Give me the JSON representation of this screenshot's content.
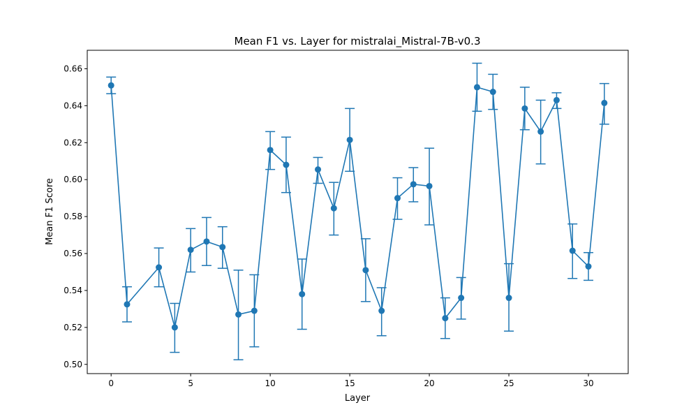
{
  "chart_data": {
    "type": "line",
    "title": "Mean F1 vs. Layer for mistralai_Mistral-7B-v0.3",
    "xlabel": "Layer",
    "ylabel": "Mean F1 Score",
    "xlim": [
      -1.5,
      32.5
    ],
    "ylim": [
      0.495,
      0.67
    ],
    "xticks": [
      0,
      5,
      10,
      15,
      20,
      25,
      30
    ],
    "yticks": [
      0.5,
      0.52,
      0.54,
      0.56,
      0.58,
      0.6,
      0.62,
      0.64,
      0.66
    ],
    "xtick_labels": [
      "0",
      "5",
      "10",
      "15",
      "20",
      "25",
      "30"
    ],
    "ytick_labels": [
      "0.50",
      "0.52",
      "0.54",
      "0.56",
      "0.58",
      "0.60",
      "0.62",
      "0.64",
      "0.66"
    ],
    "color": "#1f77b4",
    "series": [
      {
        "name": "Mean F1",
        "x": [
          0,
          1,
          3,
          4,
          5,
          6,
          7,
          8,
          9,
          10,
          11,
          12,
          13,
          14,
          15,
          16,
          17,
          18,
          19,
          20,
          21,
          22,
          23,
          24,
          25,
          26,
          27,
          28,
          29,
          30,
          31
        ],
        "y": [
          0.651,
          0.5325,
          0.5525,
          0.52,
          0.562,
          0.5665,
          0.5635,
          0.527,
          0.529,
          0.616,
          0.608,
          0.538,
          0.6055,
          0.5845,
          0.6215,
          0.551,
          0.529,
          0.59,
          0.5975,
          0.5965,
          0.525,
          0.536,
          0.65,
          0.6475,
          0.536,
          0.6385,
          0.626,
          0.643,
          0.5615,
          0.553,
          0.6415
        ],
        "err_low": [
          0.6465,
          0.523,
          0.542,
          0.5065,
          0.55,
          0.5535,
          0.552,
          0.5025,
          0.5095,
          0.6055,
          0.593,
          0.519,
          0.598,
          0.57,
          0.6045,
          0.534,
          0.5155,
          0.5785,
          0.588,
          0.5755,
          0.514,
          0.5245,
          0.637,
          0.638,
          0.518,
          0.627,
          0.6085,
          0.6385,
          0.5465,
          0.5455,
          0.63
        ],
        "err_high": [
          0.6555,
          0.542,
          0.563,
          0.533,
          0.5735,
          0.5795,
          0.5745,
          0.551,
          0.5485,
          0.626,
          0.623,
          0.557,
          0.612,
          0.5985,
          0.6385,
          0.568,
          0.5415,
          0.601,
          0.6065,
          0.617,
          0.536,
          0.547,
          0.663,
          0.657,
          0.5545,
          0.65,
          0.643,
          0.647,
          0.576,
          0.5605,
          0.652
        ]
      }
    ]
  }
}
